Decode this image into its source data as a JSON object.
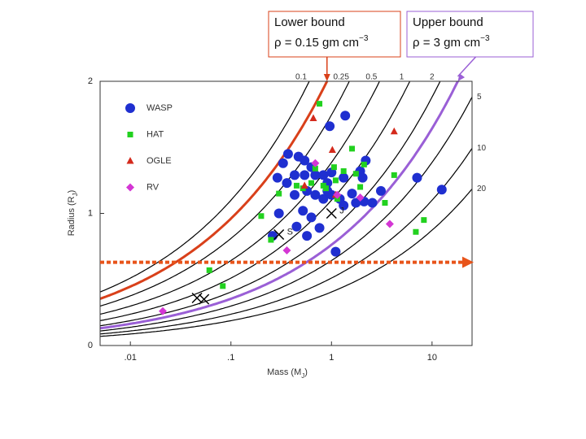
{
  "chart_data": {
    "type": "scatter",
    "x_label": [
      "Mass (M",
      "J",
      ")"
    ],
    "y_label": [
      "Radius (R",
      "J",
      ")"
    ],
    "log_x": true,
    "xlim": [
      0.005,
      25
    ],
    "ylim": [
      0,
      2
    ],
    "xticks": [
      {
        "value": 0.01,
        "label": ".01"
      },
      {
        "value": 0.1,
        "label": ".1"
      },
      1,
      10
    ],
    "yticks": [
      0,
      1,
      2
    ],
    "legend": "top-left",
    "annotations": [
      {
        "lines": [
          "Lower bound",
          "ρ = 0.15 gm cm",
          "−3"
        ],
        "color": "#d9401a",
        "density": 0.15
      },
      {
        "lines": [
          "Upper bound",
          "ρ = 3 gm cm",
          "−3"
        ],
        "color": "#9a5fd6",
        "density": 3
      }
    ],
    "density_curves": [
      0.1,
      0.25,
      0.5,
      1,
      2,
      5,
      10,
      20
    ],
    "reference_line": {
      "y": 0.63,
      "color": "#e8541a"
    },
    "solar_system": {
      "labels": [
        "J",
        "S",
        null,
        null
      ],
      "x": [
        1,
        0.3,
        0.046,
        0.054
      ],
      "values": [
        1,
        0.84,
        0.36,
        0.35
      ]
    },
    "series": [
      {
        "name": "WASP",
        "color": "#1f2fd0",
        "marker": "circle",
        "x": [
          1.37,
          0.96,
          0.37,
          0.47,
          0.54,
          0.63,
          0.33,
          0.43,
          0.29,
          0.36,
          0.54,
          0.69,
          0.83,
          1.0,
          1.32,
          2.04,
          2.19,
          1.93,
          0.57,
          0.69,
          0.83,
          1.0,
          1.21,
          1.6,
          2.11,
          2.55,
          0.91,
          0.43,
          0.52,
          0.63,
          0.3,
          0.45,
          0.76,
          0.57,
          0.26,
          1.1,
          7.1,
          12.5,
          3.1,
          1.32,
          1.75,
          0.91
        ],
        "values": [
          1.74,
          1.66,
          1.45,
          1.43,
          1.4,
          1.35,
          1.38,
          1.29,
          1.27,
          1.23,
          1.29,
          1.29,
          1.29,
          1.31,
          1.27,
          1.27,
          1.4,
          1.32,
          1.17,
          1.14,
          1.11,
          1.14,
          1.11,
          1.15,
          1.09,
          1.08,
          1.23,
          1.14,
          1.02,
          0.97,
          1.0,
          0.9,
          0.89,
          0.83,
          0.83,
          0.71,
          1.27,
          1.18,
          1.17,
          1.06,
          1.08,
          1.17
        ]
      },
      {
        "name": "HAT",
        "color": "#22d11f",
        "marker": "square",
        "x": [
          0.76,
          1.6,
          2.11,
          0.2,
          0.3,
          0.52,
          0.83,
          1.1,
          1.32,
          0.69,
          1.75,
          4.2,
          1.06,
          1.93,
          3.4,
          8.3,
          6.9,
          0.061,
          0.083,
          0.25,
          1.14,
          0.63,
          0.45,
          0.88
        ],
        "values": [
          1.83,
          1.49,
          1.37,
          0.98,
          1.15,
          1.19,
          1.21,
          1.25,
          1.32,
          1.34,
          1.3,
          1.29,
          1.35,
          1.2,
          1.08,
          0.95,
          0.86,
          0.57,
          0.45,
          0.8,
          1.11,
          1.23,
          1.21,
          1.19
        ]
      },
      {
        "name": "OGLE",
        "color": "#d42a1c",
        "marker": "triangle",
        "x": [
          0.66,
          1.02,
          4.2,
          0.54,
          1.1
        ],
        "values": [
          1.72,
          1.48,
          1.62,
          1.21,
          1.14
        ]
      },
      {
        "name": "RV",
        "color": "#d436d4",
        "marker": "diamond",
        "x": [
          0.69,
          1.14,
          3.8,
          0.36,
          0.021,
          1.93
        ],
        "values": [
          1.38,
          1.14,
          0.92,
          0.72,
          0.26,
          1.12
        ]
      }
    ]
  }
}
